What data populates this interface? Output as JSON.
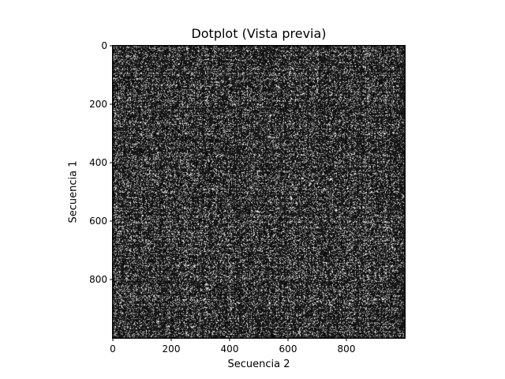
{
  "chart_data": {
    "type": "heatmap",
    "title": "Dotplot (Vista previa)",
    "xlabel": "Secuencia 2",
    "ylabel": "Secuencia 1",
    "xlim": [
      0,
      1000
    ],
    "ylim": [
      1000,
      0
    ],
    "xticks": [
      0,
      200,
      400,
      600,
      800
    ],
    "yticks": [
      0,
      200,
      400,
      600,
      800
    ],
    "xtick_labels": [
      "0",
      "200",
      "400",
      "600",
      "800"
    ],
    "ytick_labels": [
      "0",
      "200",
      "400",
      "600",
      "800"
    ],
    "colormap": "gray",
    "colors": {
      "background": "#1e1e1e",
      "dot": "#ffffff"
    }
  }
}
